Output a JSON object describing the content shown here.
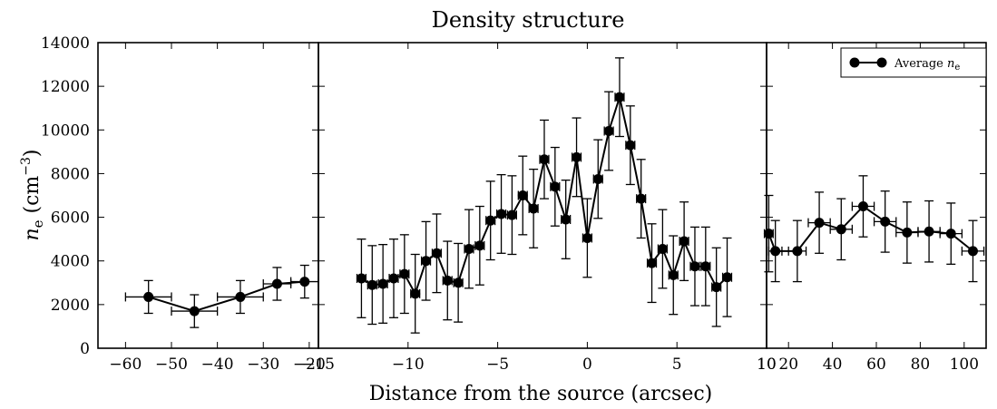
{
  "chart_data": {
    "type": "scatter",
    "title": "Density structure",
    "xlabel": "Distance from the source (arcsec)",
    "ylabel": "n_e (cm^-3)",
    "ylabel_parts": {
      "symbol": "n",
      "sub": "e",
      "unit_open": "(cm",
      "unit_sup": "−3",
      "unit_close": ")"
    },
    "legend": {
      "label": "Average n_e",
      "label_text": "Average ",
      "label_symbol": "n",
      "label_sub": "e",
      "position": "top-right"
    },
    "ylim": [
      0,
      14000
    ],
    "yticks": [
      "0",
      "2000",
      "4000",
      "6000",
      "8000",
      "10000",
      "12000",
      "14000"
    ],
    "ytick_values": [
      0,
      2000,
      4000,
      6000,
      8000,
      10000,
      12000,
      14000
    ],
    "grid": false,
    "panels": [
      {
        "xlim": [
          -66,
          -18
        ],
        "xtick_values": [
          -60,
          -50,
          -40,
          -30,
          -20
        ],
        "xticks": [
          "−60",
          "−50",
          "−40",
          "−30",
          "−20"
        ],
        "points": [
          {
            "x": -55,
            "y": 2350,
            "xerr": 5,
            "yerr": 750
          },
          {
            "x": -45,
            "y": 1700,
            "xerr": 5,
            "yerr": 750
          },
          {
            "x": -35,
            "y": 2350,
            "xerr": 5,
            "yerr": 750
          },
          {
            "x": -27,
            "y": 2950,
            "xerr": 3,
            "yerr": 750
          },
          {
            "x": -21,
            "y": 3050,
            "xerr": 3,
            "yerr": 750
          }
        ]
      },
      {
        "xlim": [
          -15,
          10
        ],
        "xtick_values": [
          -15,
          -10,
          -5,
          0,
          5,
          10
        ],
        "xticks": [
          "−15",
          "−10",
          "−5",
          "0",
          "5",
          "10"
        ],
        "points": [
          {
            "x": -12.6,
            "y": 3200,
            "xerr": 0.25,
            "yerr": 1800
          },
          {
            "x": -12.0,
            "y": 2900,
            "xerr": 0.25,
            "yerr": 1800
          },
          {
            "x": -11.4,
            "y": 2950,
            "xerr": 0.25,
            "yerr": 1800
          },
          {
            "x": -10.8,
            "y": 3200,
            "xerr": 0.25,
            "yerr": 1800
          },
          {
            "x": -10.2,
            "y": 3400,
            "xerr": 0.25,
            "yerr": 1800
          },
          {
            "x": -9.6,
            "y": 2500,
            "xerr": 0.25,
            "yerr": 1800
          },
          {
            "x": -9.0,
            "y": 4000,
            "xerr": 0.25,
            "yerr": 1800
          },
          {
            "x": -8.4,
            "y": 4350,
            "xerr": 0.25,
            "yerr": 1800
          },
          {
            "x": -7.8,
            "y": 3100,
            "xerr": 0.25,
            "yerr": 1800
          },
          {
            "x": -7.2,
            "y": 3000,
            "xerr": 0.25,
            "yerr": 1800
          },
          {
            "x": -6.6,
            "y": 4550,
            "xerr": 0.25,
            "yerr": 1800
          },
          {
            "x": -6.0,
            "y": 4700,
            "xerr": 0.25,
            "yerr": 1800
          },
          {
            "x": -5.4,
            "y": 5850,
            "xerr": 0.25,
            "yerr": 1800
          },
          {
            "x": -4.8,
            "y": 6150,
            "xerr": 0.25,
            "yerr": 1800
          },
          {
            "x": -4.2,
            "y": 6100,
            "xerr": 0.25,
            "yerr": 1800
          },
          {
            "x": -3.6,
            "y": 7000,
            "xerr": 0.25,
            "yerr": 1800
          },
          {
            "x": -3.0,
            "y": 6400,
            "xerr": 0.25,
            "yerr": 1800
          },
          {
            "x": -2.4,
            "y": 8650,
            "xerr": 0.25,
            "yerr": 1800
          },
          {
            "x": -1.8,
            "y": 7400,
            "xerr": 0.25,
            "yerr": 1800
          },
          {
            "x": -1.2,
            "y": 5900,
            "xerr": 0.25,
            "yerr": 1800
          },
          {
            "x": -0.6,
            "y": 8750,
            "xerr": 0.25,
            "yerr": 1800
          },
          {
            "x": 0.0,
            "y": 5050,
            "xerr": 0.25,
            "yerr": 1800
          },
          {
            "x": 0.6,
            "y": 7750,
            "xerr": 0.25,
            "yerr": 1800
          },
          {
            "x": 1.2,
            "y": 9950,
            "xerr": 0.25,
            "yerr": 1800
          },
          {
            "x": 1.8,
            "y": 11500,
            "xerr": 0.25,
            "yerr": 1800
          },
          {
            "x": 2.4,
            "y": 9300,
            "xerr": 0.25,
            "yerr": 1800
          },
          {
            "x": 3.0,
            "y": 6850,
            "xerr": 0.25,
            "yerr": 1800
          },
          {
            "x": 3.6,
            "y": 3900,
            "xerr": 0.25,
            "yerr": 1800
          },
          {
            "x": 4.2,
            "y": 4550,
            "xerr": 0.25,
            "yerr": 1800
          },
          {
            "x": 4.8,
            "y": 3350,
            "xerr": 0.25,
            "yerr": 1800
          },
          {
            "x": 5.4,
            "y": 4900,
            "xerr": 0.25,
            "yerr": 1800
          },
          {
            "x": 6.0,
            "y": 3750,
            "xerr": 0.25,
            "yerr": 1800
          },
          {
            "x": 6.6,
            "y": 3750,
            "xerr": 0.25,
            "yerr": 1800
          },
          {
            "x": 7.2,
            "y": 2800,
            "xerr": 0.25,
            "yerr": 1800
          },
          {
            "x": 7.8,
            "y": 3250,
            "xerr": 0.25,
            "yerr": 1800
          }
        ]
      },
      {
        "xlim": [
          10,
          110
        ],
        "xtick_values": [
          10,
          20,
          40,
          60,
          80,
          100
        ],
        "xticks": [
          "10",
          "20",
          "40",
          "60",
          "80",
          "100"
        ],
        "points": [
          {
            "x": 11,
            "y": 5250,
            "xerr": 2,
            "yerr": 1750
          },
          {
            "x": 14,
            "y": 4450,
            "xerr": 3,
            "yerr": 1400
          },
          {
            "x": 24,
            "y": 4450,
            "xerr": 4,
            "yerr": 1400
          },
          {
            "x": 34,
            "y": 5750,
            "xerr": 5,
            "yerr": 1400
          },
          {
            "x": 44,
            "y": 5450,
            "xerr": 5,
            "yerr": 1400
          },
          {
            "x": 54,
            "y": 6500,
            "xerr": 5,
            "yerr": 1400
          },
          {
            "x": 64,
            "y": 5800,
            "xerr": 5,
            "yerr": 1400
          },
          {
            "x": 74,
            "y": 5300,
            "xerr": 5,
            "yerr": 1400
          },
          {
            "x": 84,
            "y": 5350,
            "xerr": 5,
            "yerr": 1400
          },
          {
            "x": 94,
            "y": 5250,
            "xerr": 5,
            "yerr": 1400
          },
          {
            "x": 104,
            "y": 4450,
            "xerr": 5,
            "yerr": 1400
          }
        ]
      }
    ]
  },
  "colors": {
    "marker": "#000000",
    "line": "#000000",
    "background": "#ffffff"
  }
}
